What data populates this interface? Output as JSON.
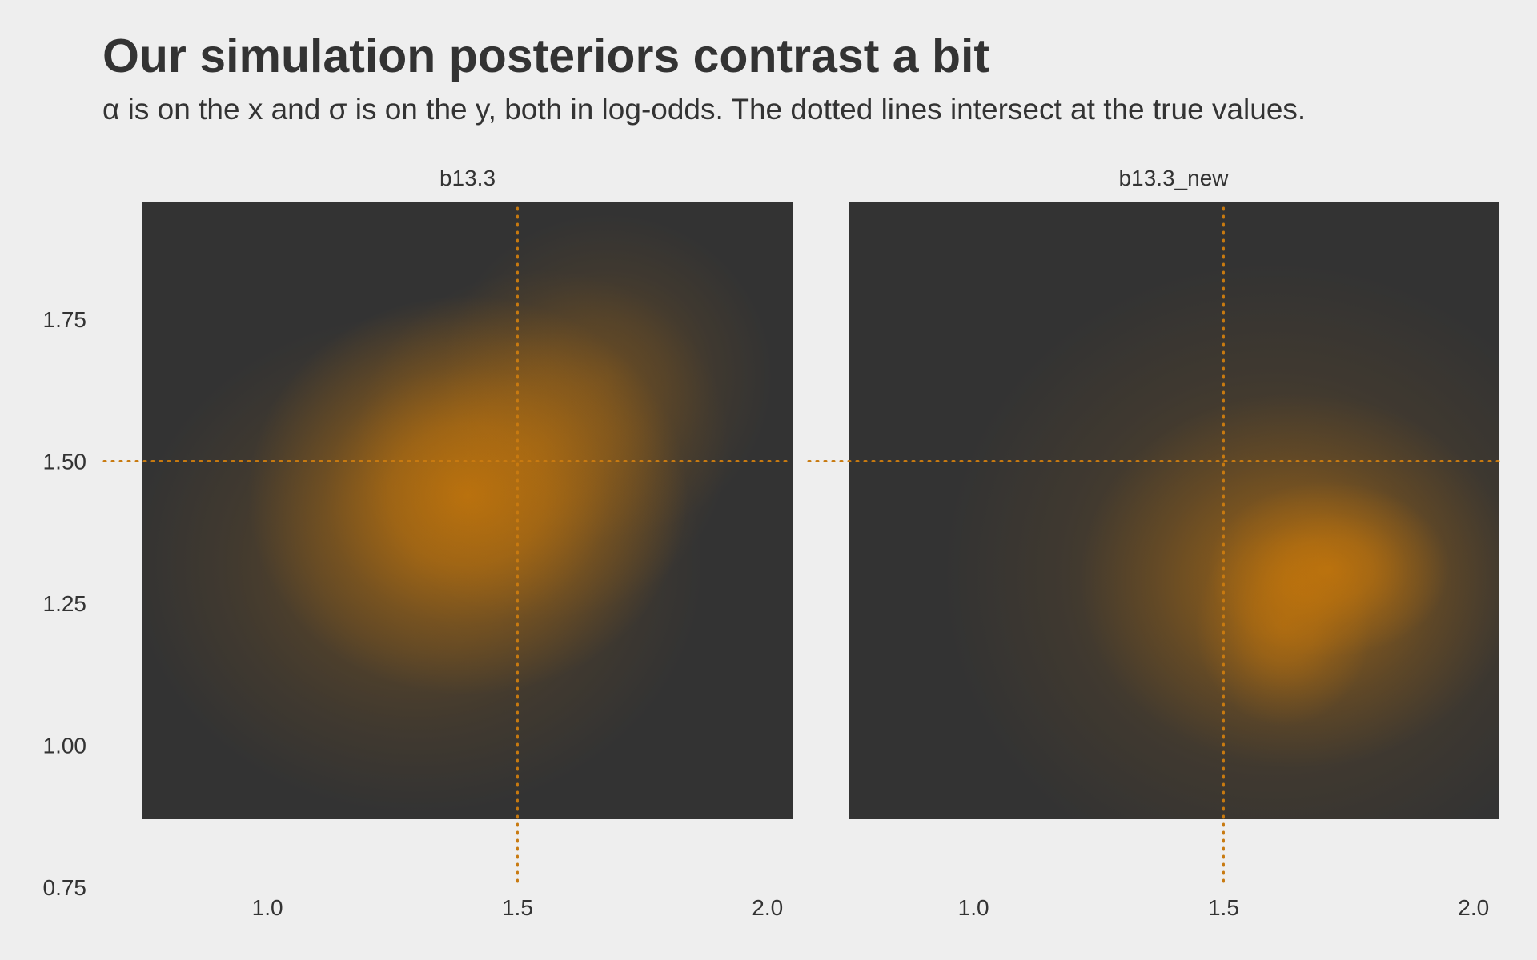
{
  "chart_data": {
    "type": "heatmap",
    "title": "Our simulation posteriors contrast a bit",
    "subtitle": "α is on the x and σ is on the y, both in log-odds. The dotted lines intersect at the true values.",
    "xlabel": "",
    "ylabel": "",
    "xlim": [
      0.75,
      2.05
    ],
    "ylim": [
      0.75,
      1.95
    ],
    "x_ticks": [
      "1.0",
      "1.5",
      "2.0"
    ],
    "y_ticks": [
      "0.75",
      "1.00",
      "1.25",
      "1.50",
      "1.75"
    ],
    "true_values": {
      "alpha": 1.5,
      "sigma": 1.5
    },
    "grid": false,
    "colors": {
      "background": "#eeeeee",
      "panel_fill": "#333333",
      "density_high": "#c8780a",
      "reference_line": "#c87a10",
      "text": "#333333"
    },
    "panels": [
      {
        "name": "b13.3",
        "density_peaks": [
          {
            "alpha": 1.4,
            "sigma": 1.44,
            "spread_alpha": 0.2,
            "spread_sigma": 0.16,
            "weight": 0.85
          },
          {
            "alpha": 1.55,
            "sigma": 1.53,
            "spread_alpha": 0.17,
            "spread_sigma": 0.14,
            "weight": 0.35
          },
          {
            "alpha": 1.68,
            "sigma": 1.65,
            "spread_alpha": 0.15,
            "spread_sigma": 0.13,
            "weight": 0.25
          },
          {
            "alpha": 1.3,
            "sigma": 1.32,
            "spread_alpha": 0.26,
            "spread_sigma": 0.2,
            "weight": 0.3
          }
        ]
      },
      {
        "name": "b13.3_new",
        "density_peaks": [
          {
            "alpha": 1.71,
            "sigma": 1.31,
            "spread_alpha": 0.11,
            "spread_sigma": 0.07,
            "weight": 0.75
          },
          {
            "alpha": 1.62,
            "sigma": 1.21,
            "spread_alpha": 0.08,
            "spread_sigma": 0.08,
            "weight": 0.55
          },
          {
            "alpha": 1.65,
            "sigma": 1.29,
            "spread_alpha": 0.2,
            "spread_sigma": 0.15,
            "weight": 0.55
          },
          {
            "alpha": 1.6,
            "sigma": 1.3,
            "spread_alpha": 0.3,
            "spread_sigma": 0.25,
            "weight": 0.25
          }
        ]
      }
    ]
  }
}
